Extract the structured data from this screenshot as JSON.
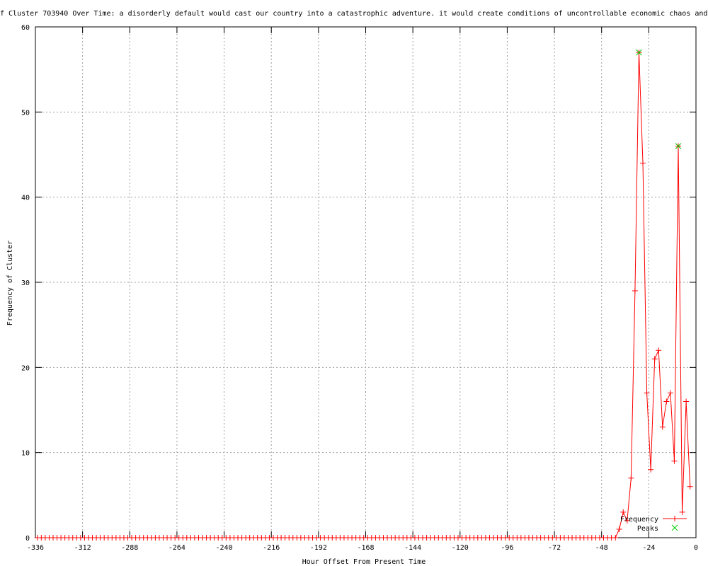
{
  "chart_data": {
    "type": "line",
    "title": "f Cluster 703940 Over Time: a disorderly default would cast our country into a catastrophic adventure. it would create conditions of uncontrollable economic chaos and",
    "xlabel": "Hour Offset From Present Time",
    "ylabel": "Frequency of Cluster",
    "xlim": [
      -336,
      0
    ],
    "ylim": [
      0,
      60
    ],
    "xticks": [
      -336,
      -312,
      -288,
      -264,
      -240,
      -216,
      -192,
      -168,
      -144,
      -120,
      -96,
      -72,
      -48,
      -24,
      0
    ],
    "yticks": [
      0,
      10,
      20,
      30,
      40,
      50,
      60
    ],
    "grid": true,
    "legend_placement": "bottom-right",
    "series": [
      {
        "name": "Frequency",
        "color": "#ff0000",
        "marker": "plus",
        "x_start": -335,
        "x_step": 2,
        "nonzero": {
          "-39": 1,
          "-37": 3,
          "-35": 2,
          "-33": 7,
          "-31": 29,
          "-29": 57,
          "-27": 44,
          "-25": 17,
          "-23": 8,
          "-21": 21,
          "-19": 22,
          "-17": 13,
          "-15": 16,
          "-13": 17,
          "-11": 9,
          "-9": 46,
          "-7": 3,
          "-5": 16,
          "-3": 6
        },
        "x_end": -3
      },
      {
        "name": "Peaks",
        "color": "#00cc00",
        "marker": "cross",
        "points": [
          [
            -29,
            57
          ],
          [
            -9,
            46
          ]
        ]
      }
    ]
  }
}
